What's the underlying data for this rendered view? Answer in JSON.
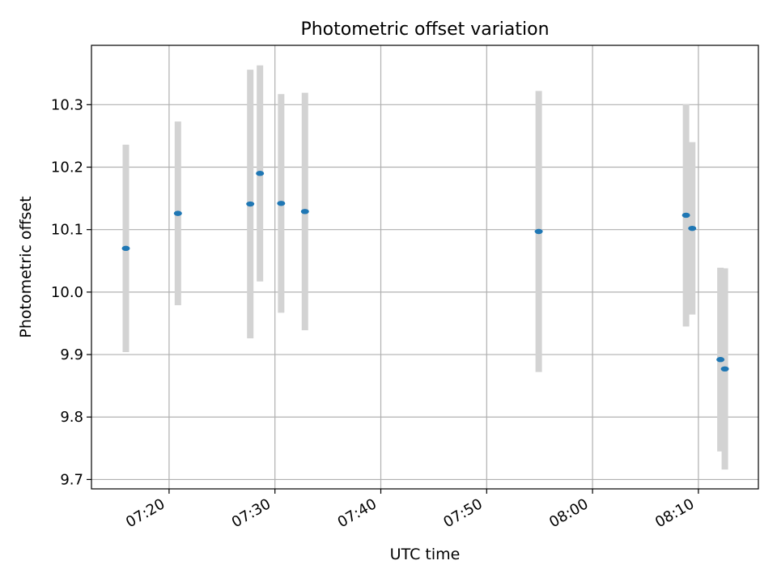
{
  "chart_data": {
    "type": "scatter",
    "title": "Photometric offset variation",
    "xlabel": "UTC time",
    "ylabel": "Photometric offset",
    "x_unit": "UTC time (HH:MM:SS)",
    "xlim": [
      "07:12:40",
      "08:15:40"
    ],
    "ylim": [
      9.685,
      10.395
    ],
    "x_ticks": [
      "07:20",
      "07:30",
      "07:40",
      "07:50",
      "08:00",
      "08:10"
    ],
    "y_ticks": [
      9.7,
      9.8,
      9.9,
      10.0,
      10.1,
      10.2,
      10.3
    ],
    "grid": true,
    "legend": "none",
    "colors": {
      "point": "#1f77b4",
      "errorbar": "#d3d3d3",
      "grid": "#b0b0b0"
    },
    "points": [
      {
        "x": "07:15:55",
        "y": 10.07,
        "err": 0.166
      },
      {
        "x": "07:20:50",
        "y": 10.126,
        "err": 0.147
      },
      {
        "x": "07:27:40",
        "y": 10.141,
        "err": 0.215
      },
      {
        "x": "07:28:35",
        "y": 10.19,
        "err": 0.173
      },
      {
        "x": "07:30:35",
        "y": 10.142,
        "err": 0.175
      },
      {
        "x": "07:32:50",
        "y": 10.129,
        "err": 0.19
      },
      {
        "x": "07:54:55",
        "y": 10.097,
        "err": 0.225
      },
      {
        "x": "08:08:50",
        "y": 10.123,
        "err": 0.178
      },
      {
        "x": "08:09:25",
        "y": 10.102,
        "err": 0.138
      },
      {
        "x": "08:12:05",
        "y": 9.892,
        "err": 0.147
      },
      {
        "x": "08:12:30",
        "y": 9.877,
        "err": 0.161
      }
    ]
  }
}
